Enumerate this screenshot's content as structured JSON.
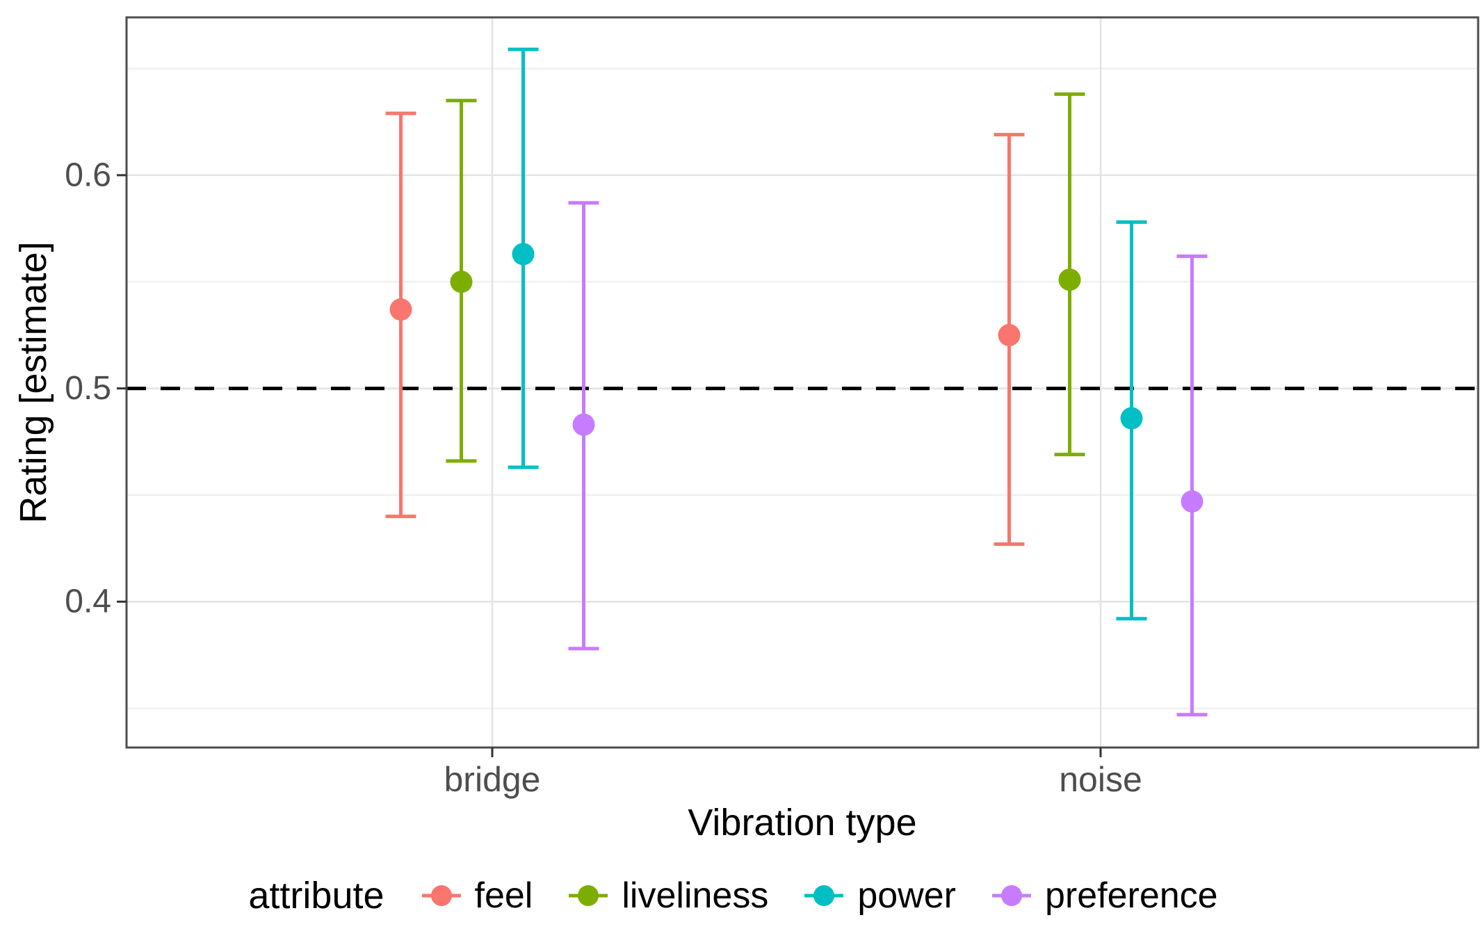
{
  "chart_data": {
    "type": "scatter",
    "subtype": "pointrange-with-error-bars",
    "title": "",
    "xlabel": "Vibration type",
    "ylabel": "Rating [estimate]",
    "categories": [
      "bridge",
      "noise"
    ],
    "yticks": [
      0.4,
      0.5,
      0.6
    ],
    "yticks_minor": [
      0.35,
      0.45,
      0.55,
      0.65
    ],
    "ylim": [
      0.332,
      0.674
    ],
    "reference_line_y": 0.5,
    "grid": true,
    "legend_position": "bottom",
    "legend_title": "attribute",
    "series": [
      {
        "name": "feel",
        "color": "#F8766D",
        "points": [
          {
            "category": "bridge",
            "estimate": 0.537,
            "ci_low": 0.44,
            "ci_high": 0.629
          },
          {
            "category": "noise",
            "estimate": 0.525,
            "ci_low": 0.427,
            "ci_high": 0.619
          }
        ]
      },
      {
        "name": "liveliness",
        "color": "#7CAE00",
        "points": [
          {
            "category": "bridge",
            "estimate": 0.55,
            "ci_low": 0.466,
            "ci_high": 0.635
          },
          {
            "category": "noise",
            "estimate": 0.551,
            "ci_low": 0.469,
            "ci_high": 0.638
          }
        ]
      },
      {
        "name": "power",
        "color": "#00BFC4",
        "points": [
          {
            "category": "bridge",
            "estimate": 0.563,
            "ci_low": 0.463,
            "ci_high": 0.659
          },
          {
            "category": "noise",
            "estimate": 0.486,
            "ci_low": 0.392,
            "ci_high": 0.578
          }
        ]
      },
      {
        "name": "preference",
        "color": "#C77CFF",
        "points": [
          {
            "category": "bridge",
            "estimate": 0.483,
            "ci_low": 0.378,
            "ci_high": 0.587
          },
          {
            "category": "noise",
            "estimate": 0.447,
            "ci_low": 0.347,
            "ci_high": 0.562
          }
        ]
      }
    ],
    "style": {
      "panel_border_color": "#4d4d4d",
      "grid_major_color": "#e3e3e3",
      "grid_minor_color": "#ededed",
      "tick_color": "#333333",
      "tick_label_color": "#4d4d4d",
      "reference_line_color": "#000000"
    }
  }
}
